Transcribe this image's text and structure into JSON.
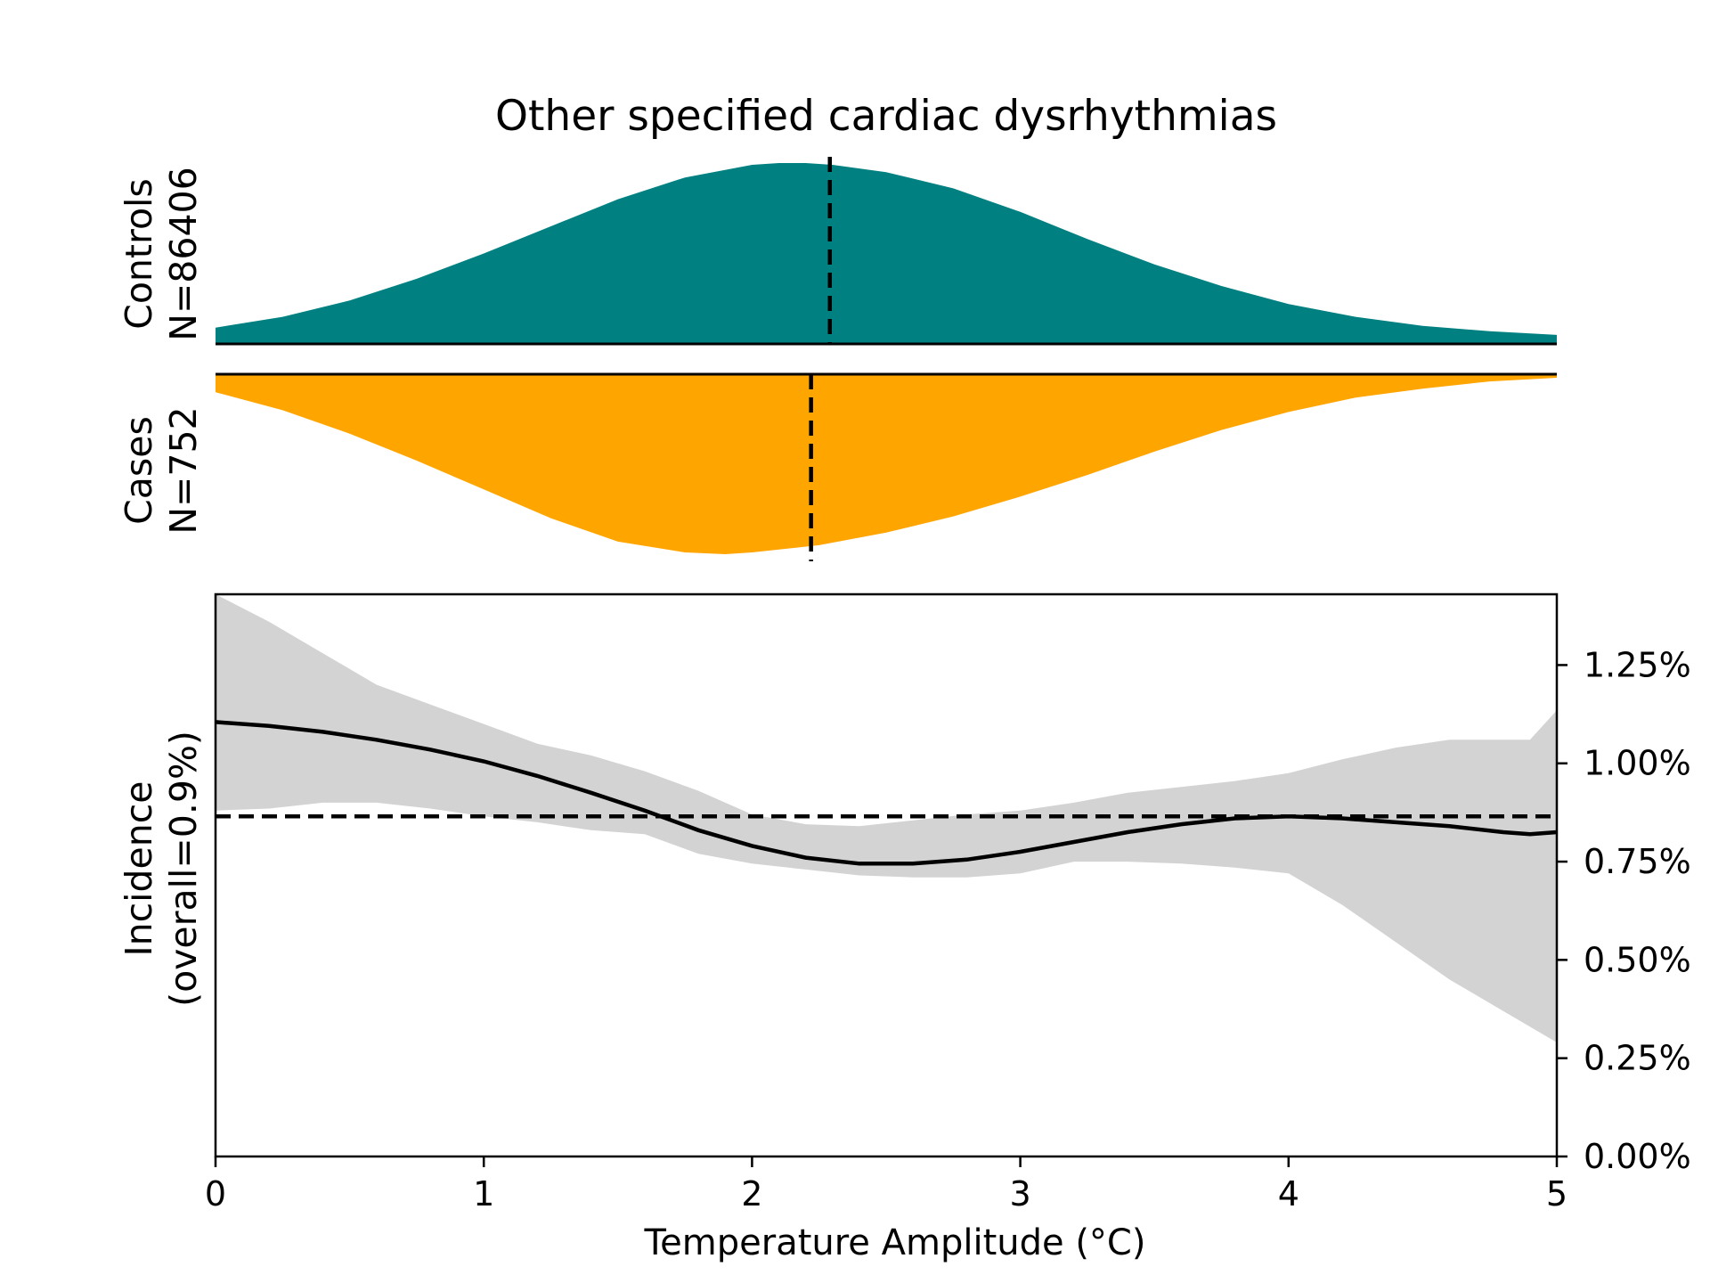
{
  "chart_data": {
    "type": "area",
    "title": "Other specified cardiac dysrhythmias",
    "x_range": [
      0,
      5
    ],
    "xlabel": "Temperature Amplitude (°C)",
    "xticks": [
      "0",
      "1",
      "2",
      "3",
      "4",
      "5"
    ],
    "xtick_values": [
      0,
      1,
      2,
      3,
      4,
      5
    ],
    "colors": {
      "controls": "#008080",
      "cases": "#FFA500",
      "ci_band": "#D3D3D3",
      "line": "#000000"
    },
    "controls": {
      "label_line1": "Controls",
      "label_line2": "N=86406",
      "median": 2.29,
      "x": [
        0,
        0.25,
        0.5,
        0.75,
        1.0,
        1.25,
        1.5,
        1.75,
        2.0,
        2.1,
        2.2,
        2.3,
        2.5,
        2.75,
        3.0,
        3.25,
        3.5,
        3.75,
        4.0,
        4.25,
        4.5,
        4.75,
        5.0
      ],
      "density": [
        0.09,
        0.15,
        0.24,
        0.36,
        0.5,
        0.65,
        0.8,
        0.92,
        0.99,
        1.0,
        1.0,
        0.99,
        0.95,
        0.86,
        0.73,
        0.58,
        0.44,
        0.32,
        0.22,
        0.15,
        0.1,
        0.07,
        0.05
      ]
    },
    "cases": {
      "label_line1": "Cases",
      "label_line2": "N=752",
      "median": 2.22,
      "x": [
        0,
        0.25,
        0.5,
        0.75,
        1.0,
        1.25,
        1.5,
        1.75,
        1.9,
        2.0,
        2.25,
        2.5,
        2.75,
        3.0,
        3.25,
        3.5,
        3.75,
        4.0,
        4.25,
        4.5,
        4.75,
        5.0
      ],
      "density": [
        0.1,
        0.2,
        0.33,
        0.48,
        0.64,
        0.8,
        0.93,
        0.99,
        1.0,
        0.99,
        0.95,
        0.88,
        0.79,
        0.68,
        0.56,
        0.43,
        0.31,
        0.21,
        0.13,
        0.08,
        0.04,
        0.02
      ]
    },
    "incidence": {
      "ylabel_line1": "Incidence",
      "ylabel_line2": "(overall=0.9%)",
      "overall": 0.865,
      "ylim": [
        0,
        1.43
      ],
      "yticks": [
        "0.00%",
        "0.25%",
        "0.50%",
        "0.75%",
        "1.00%",
        "1.25%"
      ],
      "ytick_values": [
        0,
        0.25,
        0.5,
        0.75,
        1.0,
        1.25
      ],
      "x": [
        0,
        0.2,
        0.4,
        0.6,
        0.8,
        1.0,
        1.2,
        1.4,
        1.6,
        1.8,
        2.0,
        2.2,
        2.4,
        2.6,
        2.8,
        3.0,
        3.2,
        3.4,
        3.6,
        3.8,
        4.0,
        4.2,
        4.4,
        4.6,
        4.8,
        4.9,
        5.0
      ],
      "estimate": [
        1.105,
        1.095,
        1.08,
        1.06,
        1.035,
        1.005,
        0.968,
        0.925,
        0.88,
        0.83,
        0.79,
        0.76,
        0.745,
        0.745,
        0.755,
        0.775,
        0.8,
        0.825,
        0.845,
        0.86,
        0.865,
        0.86,
        0.85,
        0.84,
        0.825,
        0.82,
        0.825
      ],
      "upper": [
        1.44,
        1.36,
        1.28,
        1.2,
        1.15,
        1.1,
        1.05,
        1.02,
        0.98,
        0.93,
        0.87,
        0.845,
        0.84,
        0.855,
        0.87,
        0.88,
        0.9,
        0.925,
        0.94,
        0.955,
        0.975,
        1.01,
        1.04,
        1.06,
        1.06,
        1.06,
        1.135
      ],
      "lower": [
        0.88,
        0.885,
        0.9,
        0.9,
        0.885,
        0.865,
        0.85,
        0.83,
        0.82,
        0.77,
        0.745,
        0.73,
        0.715,
        0.71,
        0.71,
        0.72,
        0.75,
        0.75,
        0.745,
        0.735,
        0.72,
        0.64,
        0.545,
        0.45,
        0.37,
        0.33,
        0.29
      ]
    }
  }
}
